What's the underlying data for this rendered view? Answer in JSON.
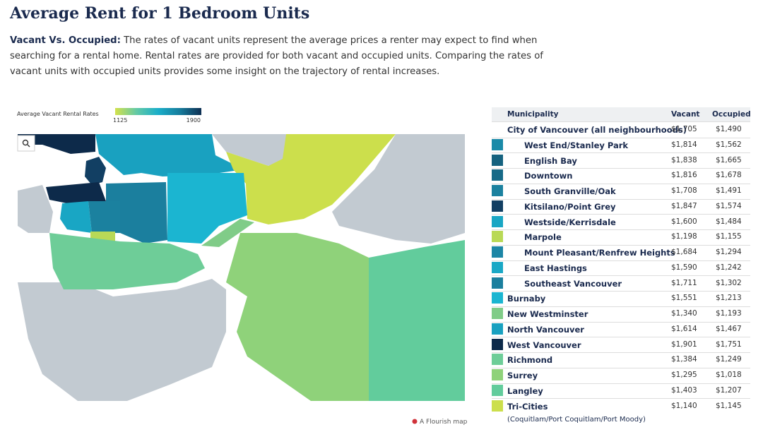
{
  "header": {
    "title": "Average Rent for 1 Bedroom Units",
    "lead": "Vacant Vs. Occupied:",
    "body": "The rates of vacant units represent the average prices a renter may expect to find when searching for a rental home. Rental rates are provided for both vacant and occupied units. Comparing the rates of vacant units with occupied units provides some insight on the trajectory of rental increases."
  },
  "legend": {
    "title": "Average Vacant Rental Rates",
    "min": 1125,
    "max": 1900,
    "colors": [
      "#d3e14b",
      "#62c9a6",
      "#1aaec9",
      "#167c9c",
      "#0e2f52"
    ]
  },
  "credit": "A Flourish map",
  "table": {
    "columns": [
      "Municipality",
      "Vacant",
      "Occupied"
    ],
    "rows": [
      {
        "name": "City of Vancouver (all neighbourhoods)",
        "vacant": "$1,705",
        "occupied": "$1,490"
      },
      {
        "name": "West End/Stanley Park",
        "vacant": "$1,814",
        "occupied": "$1,562",
        "color": "#1a8aa8",
        "indent": true
      },
      {
        "name": "English Bay",
        "vacant": "$1,838",
        "occupied": "$1,665",
        "color": "#15627f",
        "indent": true
      },
      {
        "name": "Downtown",
        "vacant": "$1,816",
        "occupied": "$1,678",
        "color": "#176a88",
        "indent": true
      },
      {
        "name": "South Granville/Oak",
        "vacant": "$1,708",
        "occupied": "$1,491",
        "color": "#1b819f",
        "indent": true
      },
      {
        "name": "Kitsilano/Point Grey",
        "vacant": "$1,847",
        "occupied": "$1,574",
        "color": "#123f63",
        "indent": true
      },
      {
        "name": "Westside/Kerrisdale",
        "vacant": "$1,600",
        "occupied": "$1,484",
        "color": "#19a6c4",
        "indent": true
      },
      {
        "name": "Marpole",
        "vacant": "$1,198",
        "occupied": "$1,155",
        "color": "#b9d956",
        "indent": true
      },
      {
        "name": "Mount Pleasant/Renfrew Heights",
        "vacant": "$1,684",
        "occupied": "$1,294",
        "color": "#1c86a6",
        "indent": true
      },
      {
        "name": "East Hastings",
        "vacant": "$1,590",
        "occupied": "$1,242",
        "color": "#1aa8c6",
        "indent": true
      },
      {
        "name": "Southeast Vancouver",
        "vacant": "$1,711",
        "occupied": "$1,302",
        "color": "#1b7f9e",
        "indent": true
      },
      {
        "name": "Burnaby",
        "vacant": "$1,551",
        "occupied": "$1,213",
        "color": "#1bb5d1"
      },
      {
        "name": "New Westminster",
        "vacant": "$1,340",
        "occupied": "$1,193",
        "color": "#80cc88"
      },
      {
        "name": "North Vancouver",
        "vacant": "$1,614",
        "occupied": "$1,467",
        "color": "#19a1c0"
      },
      {
        "name": "West Vancouver",
        "vacant": "$1,901",
        "occupied": "$1,751",
        "color": "#0d2a4a"
      },
      {
        "name": "Richmond",
        "vacant": "$1,384",
        "occupied": "$1,249",
        "color": "#6ecd98"
      },
      {
        "name": "Surrey",
        "vacant": "$1,295",
        "occupied": "$1,018",
        "color": "#8fd27a"
      },
      {
        "name": "Langley",
        "vacant": "$1,403",
        "occupied": "$1,207",
        "color": "#62cc9c"
      },
      {
        "name": "Tri-Cities",
        "vacant": "$1,140",
        "occupied": "$1,145",
        "color": "#ccdf4c",
        "note": "(Coquitlam/Port Coquitlam/Port Moody)"
      }
    ]
  }
}
